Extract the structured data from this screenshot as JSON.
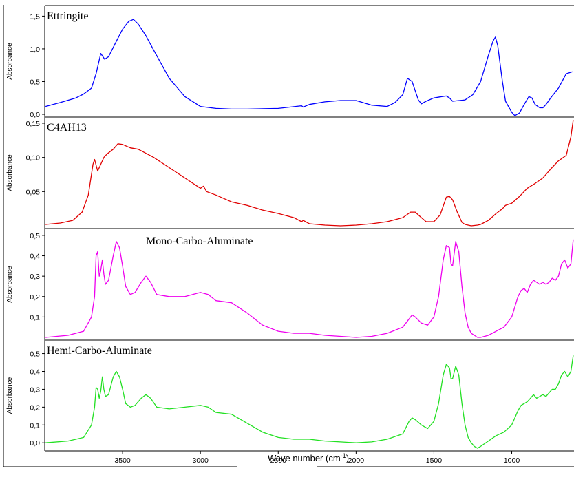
{
  "chart_data": {
    "type": "line",
    "xlabel": "Wave number (cm",
    "xlabel_sup": "-1",
    "xlabel_end": ")",
    "xlim": [
      4000,
      600
    ],
    "x_ticks": [
      3500,
      3000,
      2500,
      2000,
      1500,
      1000
    ],
    "grid": false,
    "legend": "none",
    "panels": [
      {
        "name": "Ettringite",
        "ylabel": "Absorbance",
        "color": "#0000ff",
        "ylim": [
          0,
          1.62
        ],
        "y_ticks": [
          {
            "v": 0.0,
            "label": "0,0"
          },
          {
            "v": 0.5,
            "label": "0,5"
          },
          {
            "v": 1.0,
            "label": "1,0"
          },
          {
            "v": 1.5,
            "label": "1,5"
          }
        ],
        "x": [
          3995,
          3900,
          3800,
          3750,
          3700,
          3670,
          3640,
          3615,
          3590,
          3550,
          3500,
          3460,
          3430,
          3400,
          3350,
          3300,
          3200,
          3100,
          3000,
          2900,
          2800,
          2700,
          2500,
          2350,
          2340,
          2300,
          2200,
          2100,
          2000,
          1900,
          1800,
          1750,
          1700,
          1670,
          1640,
          1600,
          1580,
          1550,
          1500,
          1450,
          1420,
          1400,
          1380,
          1300,
          1250,
          1200,
          1150,
          1120,
          1105,
          1090,
          1060,
          1040,
          1000,
          980,
          950,
          920,
          890,
          870,
          850,
          820,
          800,
          780,
          750,
          700,
          650,
          610
        ],
        "y": [
          0.12,
          0.18,
          0.25,
          0.31,
          0.4,
          0.62,
          0.93,
          0.84,
          0.88,
          1.07,
          1.3,
          1.42,
          1.45,
          1.38,
          1.2,
          0.98,
          0.55,
          0.27,
          0.12,
          0.09,
          0.08,
          0.08,
          0.09,
          0.13,
          0.11,
          0.15,
          0.19,
          0.21,
          0.21,
          0.14,
          0.12,
          0.18,
          0.3,
          0.55,
          0.5,
          0.22,
          0.16,
          0.2,
          0.25,
          0.27,
          0.28,
          0.25,
          0.2,
          0.22,
          0.3,
          0.5,
          0.9,
          1.12,
          1.18,
          1.05,
          0.5,
          0.2,
          0.03,
          -0.02,
          0.02,
          0.15,
          0.27,
          0.25,
          0.15,
          0.1,
          0.1,
          0.15,
          0.25,
          0.4,
          0.62,
          0.65
        ]
      },
      {
        "name": "C4AH13",
        "ylabel": "Absorbance",
        "color": "#e00000",
        "ylim": [
          0,
          0.155
        ],
        "y_ticks": [
          {
            "v": 0.05,
            "label": "0,05"
          },
          {
            "v": 0.1,
            "label": "0,10"
          },
          {
            "v": 0.15,
            "label": "0,15"
          }
        ],
        "x": [
          3995,
          3900,
          3820,
          3760,
          3720,
          3690,
          3680,
          3660,
          3640,
          3620,
          3600,
          3560,
          3530,
          3500,
          3450,
          3400,
          3300,
          3200,
          3100,
          3000,
          2980,
          2960,
          2900,
          2800,
          2700,
          2600,
          2500,
          2400,
          2350,
          2340,
          2300,
          2200,
          2100,
          2000,
          1900,
          1800,
          1700,
          1650,
          1620,
          1580,
          1550,
          1500,
          1460,
          1420,
          1400,
          1380,
          1350,
          1320,
          1300,
          1260,
          1220,
          1200,
          1150,
          1100,
          1060,
          1040,
          1000,
          950,
          900,
          850,
          800,
          750,
          700,
          650,
          620,
          605
        ],
        "y": [
          0.002,
          0.004,
          0.008,
          0.02,
          0.045,
          0.09,
          0.097,
          0.08,
          0.09,
          0.1,
          0.105,
          0.112,
          0.12,
          0.119,
          0.114,
          0.112,
          0.1,
          0.085,
          0.07,
          0.055,
          0.058,
          0.05,
          0.045,
          0.035,
          0.03,
          0.023,
          0.018,
          0.012,
          0.006,
          0.008,
          0.003,
          0.001,
          0.0,
          0.001,
          0.003,
          0.006,
          0.012,
          0.02,
          0.02,
          0.012,
          0.006,
          0.006,
          0.016,
          0.042,
          0.043,
          0.038,
          0.02,
          0.005,
          0.002,
          0.0,
          0.001,
          0.002,
          0.008,
          0.018,
          0.025,
          0.03,
          0.033,
          0.043,
          0.055,
          0.062,
          0.07,
          0.083,
          0.095,
          0.103,
          0.13,
          0.155
        ]
      },
      {
        "name": "Mono-Carbo-Aluminate",
        "ylabel": "Absorbance",
        "color": "#ee00ee",
        "ylim": [
          0,
          0.52
        ],
        "y_ticks": [
          {
            "v": 0.1,
            "label": "0,1"
          },
          {
            "v": 0.2,
            "label": "0,2"
          },
          {
            "v": 0.3,
            "label": "0,3"
          },
          {
            "v": 0.4,
            "label": "0,4"
          },
          {
            "v": 0.5,
            "label": "0,5"
          }
        ],
        "x": [
          3995,
          3850,
          3750,
          3700,
          3680,
          3670,
          3660,
          3650,
          3640,
          3630,
          3620,
          3610,
          3590,
          3560,
          3540,
          3520,
          3500,
          3480,
          3450,
          3420,
          3380,
          3350,
          3320,
          3280,
          3200,
          3100,
          3000,
          2950,
          2900,
          2800,
          2700,
          2600,
          2500,
          2400,
          2300,
          2200,
          2100,
          2000,
          1900,
          1800,
          1700,
          1660,
          1640,
          1620,
          1580,
          1540,
          1500,
          1470,
          1440,
          1420,
          1400,
          1390,
          1380,
          1360,
          1340,
          1320,
          1300,
          1280,
          1260,
          1240,
          1220,
          1200,
          1150,
          1100,
          1050,
          1000,
          960,
          940,
          920,
          900,
          880,
          860,
          840,
          820,
          800,
          780,
          760,
          740,
          720,
          700,
          680,
          660,
          640,
          620,
          605
        ],
        "y": [
          0.0,
          0.01,
          0.03,
          0.1,
          0.2,
          0.4,
          0.42,
          0.3,
          0.33,
          0.38,
          0.31,
          0.26,
          0.28,
          0.4,
          0.47,
          0.44,
          0.35,
          0.25,
          0.21,
          0.22,
          0.27,
          0.3,
          0.27,
          0.21,
          0.2,
          0.2,
          0.22,
          0.21,
          0.18,
          0.17,
          0.12,
          0.06,
          0.03,
          0.02,
          0.02,
          0.01,
          0.005,
          0.0,
          0.005,
          0.02,
          0.05,
          0.09,
          0.11,
          0.1,
          0.07,
          0.06,
          0.1,
          0.2,
          0.38,
          0.45,
          0.44,
          0.36,
          0.35,
          0.47,
          0.42,
          0.25,
          0.12,
          0.05,
          0.02,
          0.01,
          0.0,
          0.0,
          0.01,
          0.03,
          0.05,
          0.1,
          0.2,
          0.23,
          0.24,
          0.22,
          0.26,
          0.28,
          0.27,
          0.26,
          0.27,
          0.26,
          0.27,
          0.29,
          0.28,
          0.3,
          0.36,
          0.38,
          0.34,
          0.36,
          0.48
        ]
      },
      {
        "name": "Hemi-Carbo-Aluminate",
        "ylabel": "Absorbance",
        "color": "#22e022",
        "ylim": [
          -0.03,
          0.56
        ],
        "y_ticks": [
          {
            "v": 0.0,
            "label": "0,0"
          },
          {
            "v": 0.1,
            "label": "0,1"
          },
          {
            "v": 0.2,
            "label": "0,2"
          },
          {
            "v": 0.3,
            "label": "0,3"
          },
          {
            "v": 0.4,
            "label": "0,4"
          },
          {
            "v": 0.5,
            "label": "0,5"
          }
        ],
        "x": [
          3995,
          3850,
          3750,
          3700,
          3680,
          3670,
          3660,
          3650,
          3640,
          3630,
          3620,
          3610,
          3590,
          3560,
          3540,
          3520,
          3500,
          3480,
          3450,
          3420,
          3380,
          3350,
          3320,
          3280,
          3200,
          3100,
          3000,
          2950,
          2900,
          2800,
          2700,
          2600,
          2500,
          2400,
          2300,
          2200,
          2100,
          2000,
          1900,
          1800,
          1700,
          1660,
          1640,
          1620,
          1580,
          1540,
          1500,
          1470,
          1440,
          1420,
          1400,
          1390,
          1380,
          1360,
          1340,
          1320,
          1300,
          1280,
          1260,
          1240,
          1220,
          1200,
          1150,
          1100,
          1050,
          1000,
          960,
          940,
          920,
          900,
          880,
          860,
          840,
          820,
          800,
          780,
          760,
          740,
          720,
          700,
          680,
          660,
          640,
          620,
          605
        ],
        "y": [
          0.0,
          0.01,
          0.03,
          0.1,
          0.2,
          0.31,
          0.3,
          0.25,
          0.29,
          0.37,
          0.3,
          0.26,
          0.27,
          0.37,
          0.4,
          0.37,
          0.3,
          0.22,
          0.2,
          0.21,
          0.25,
          0.27,
          0.25,
          0.2,
          0.19,
          0.2,
          0.21,
          0.2,
          0.17,
          0.16,
          0.11,
          0.06,
          0.03,
          0.02,
          0.02,
          0.01,
          0.005,
          0.0,
          0.005,
          0.02,
          0.05,
          0.12,
          0.14,
          0.13,
          0.1,
          0.08,
          0.12,
          0.22,
          0.38,
          0.44,
          0.42,
          0.36,
          0.36,
          0.43,
          0.38,
          0.22,
          0.1,
          0.03,
          0.0,
          -0.02,
          -0.03,
          -0.02,
          0.01,
          0.04,
          0.06,
          0.1,
          0.18,
          0.21,
          0.22,
          0.23,
          0.25,
          0.27,
          0.25,
          0.26,
          0.27,
          0.26,
          0.28,
          0.3,
          0.3,
          0.33,
          0.38,
          0.4,
          0.37,
          0.4,
          0.49
        ]
      }
    ]
  }
}
